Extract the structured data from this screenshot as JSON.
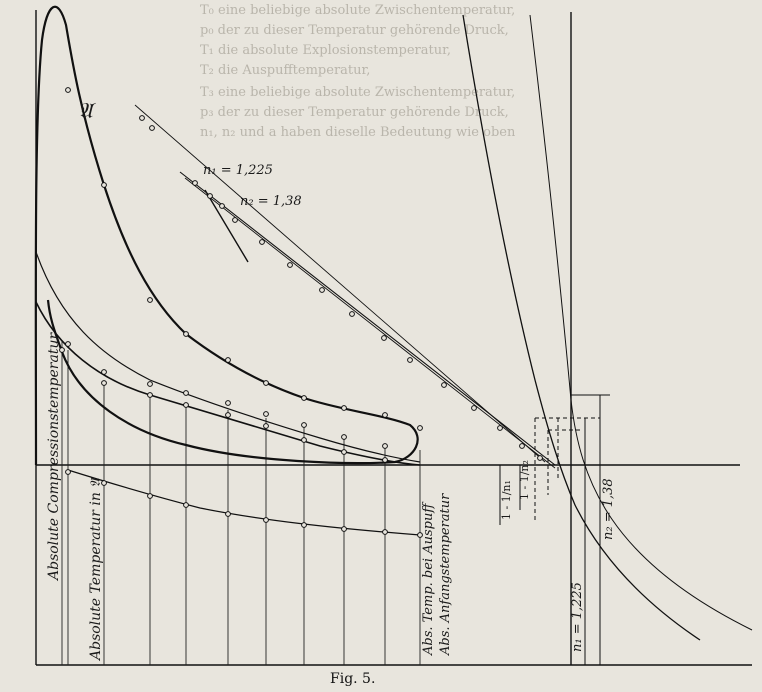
{
  "figure": {
    "caption": "Fig. 5.",
    "point_label": "𝔄",
    "curve_labels": {
      "upper_n1": "n₁ = 1,225",
      "upper_n2": "n₂ = 1,38",
      "right_n1": "n₁ = 1,225",
      "right_n2": "n₂ = 1,38",
      "ratio_a": "1 - 1/n₁",
      "ratio_b": "1 - 1/n₂"
    },
    "axis_labels": {
      "compression": "Absolute Compressionstemperatur",
      "temp_in_A": "Absolute Temperatur in 𝔄",
      "exhaust": "Abs. Temp. bei Auspuff",
      "initial": "Abs. Anfangstemperatur"
    },
    "bleed_text": [
      "T₀ eine beliebige absolute Zwischentemperatur,",
      "p₀ der zu dieser Temperatur gehörende Druck,",
      "T₁ die absolute Explosionstemperatur,",
      "T₂ die Auspufftemperatur,",
      "T₃ eine beliebige absolute Zwischentemperatur,",
      "p₃ der zu dieser Temperatur gehörende Druck,",
      "n₁, n₂ und a haben dieselle Bedeutung wie oben"
    ]
  }
}
